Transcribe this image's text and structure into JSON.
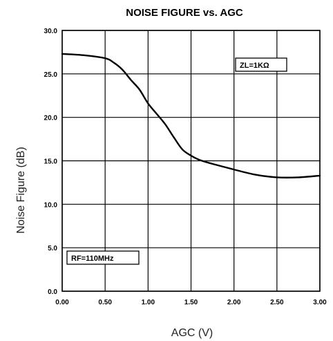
{
  "chart_data": {
    "type": "line",
    "title": "NOISE FIGURE vs. AGC",
    "xlabel": "AGC  (V)",
    "ylabel": "Noise Figure (dB)",
    "xlim": [
      0,
      3.0
    ],
    "ylim": [
      0,
      30.0
    ],
    "xticks": [
      0,
      0.5,
      1.0,
      1.5,
      2.0,
      2.5,
      3.0
    ],
    "xtick_labels": [
      "0.00",
      "0.50",
      "1.00",
      "1.50",
      "2.00",
      "2.50",
      "3.00"
    ],
    "yticks": [
      0,
      5,
      10,
      15,
      20,
      25,
      30
    ],
    "ytick_labels": [
      "0.0",
      "5.0",
      "10.0",
      "15.0",
      "20.0",
      "25.0",
      "30.0"
    ],
    "grid": true,
    "annotations": [
      {
        "text": "ZL=1KΩ",
        "placement": "upper-right"
      },
      {
        "text": "RF=110MHz",
        "placement": "lower-left"
      }
    ],
    "series": [
      {
        "x": [
          0.0,
          0.25,
          0.5,
          0.6,
          0.7,
          0.8,
          0.9,
          1.0,
          1.1,
          1.2,
          1.3,
          1.4,
          1.5,
          1.6,
          1.75,
          2.0,
          2.25,
          2.5,
          2.75,
          3.0
        ],
        "values": [
          27.3,
          27.15,
          26.8,
          26.3,
          25.5,
          24.3,
          23.2,
          21.6,
          20.4,
          19.2,
          17.7,
          16.3,
          15.6,
          15.1,
          14.65,
          14.0,
          13.4,
          13.1,
          13.1,
          13.3
        ]
      }
    ]
  }
}
